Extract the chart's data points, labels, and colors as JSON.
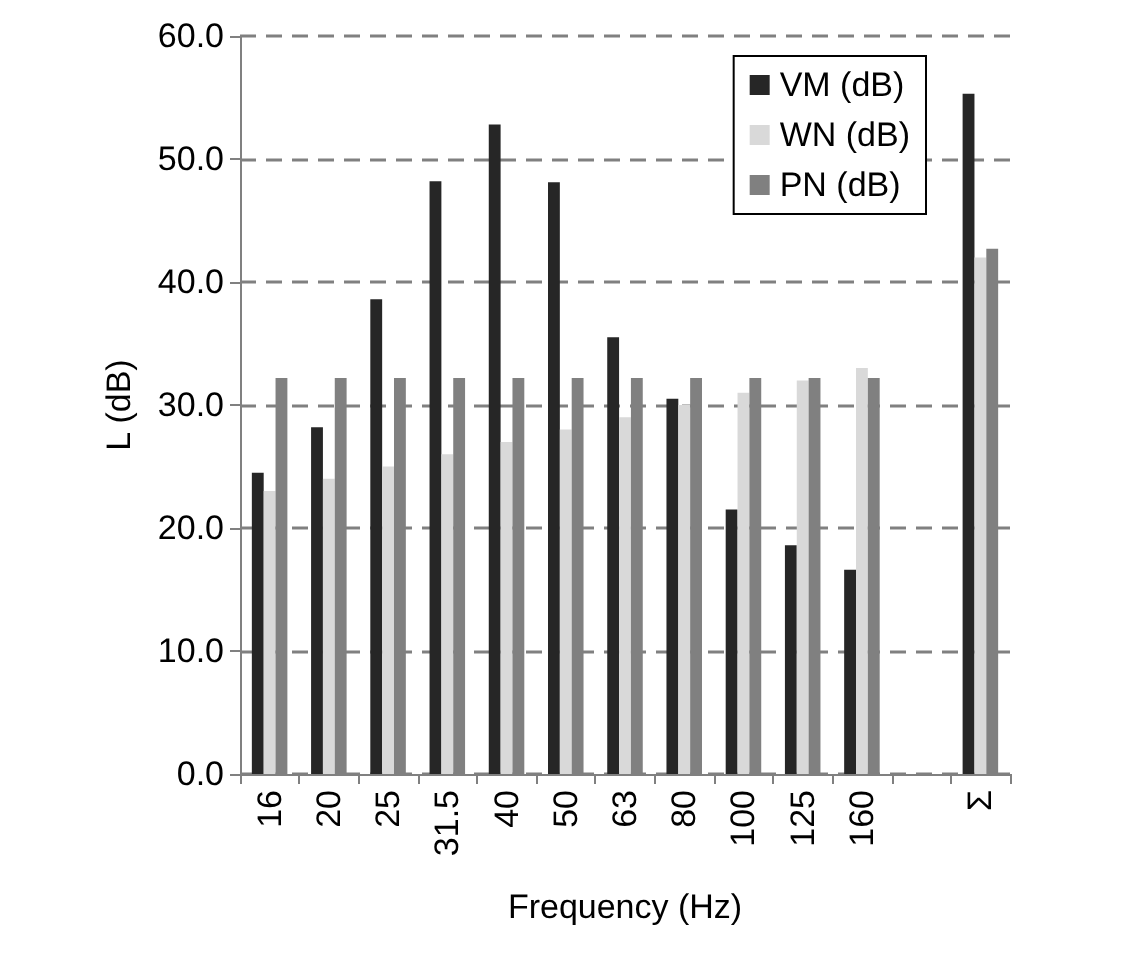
{
  "chart_data": {
    "type": "bar",
    "xlabel": "Frequency (Hz)",
    "ylabel": "L (dB)",
    "categories": [
      "16",
      "20",
      "25",
      "31.5",
      "40",
      "50",
      "63",
      "80",
      "100",
      "125",
      "160",
      null,
      "Σ"
    ],
    "series": [
      {
        "name": "VM (dB)",
        "color": "#262626",
        "values": [
          24.5,
          28.2,
          38.6,
          48.2,
          52.8,
          48.1,
          35.5,
          30.5,
          21.5,
          18.6,
          16.6,
          null,
          55.3
        ]
      },
      {
        "name": "WN (dB)",
        "color": "#d9d9d9",
        "values": [
          23.0,
          24.0,
          25.0,
          26.0,
          27.0,
          28.0,
          29.0,
          30.0,
          31.0,
          32.0,
          33.0,
          null,
          42.0
        ]
      },
      {
        "name": "PN (dB)",
        "color": "#808080",
        "values": [
          32.2,
          32.2,
          32.2,
          32.2,
          32.2,
          32.2,
          32.2,
          32.2,
          32.2,
          32.2,
          32.2,
          null,
          42.7
        ]
      }
    ],
    "ylim": [
      0,
      60
    ],
    "yticks": [
      {
        "value": 0,
        "label": "0.0"
      },
      {
        "value": 10,
        "label": "10.0"
      },
      {
        "value": 20,
        "label": "20.0"
      },
      {
        "value": 30,
        "label": "30.0"
      },
      {
        "value": 40,
        "label": "40.0"
      },
      {
        "value": 50,
        "label": "50.0"
      },
      {
        "value": 60,
        "label": "60.0"
      }
    ],
    "grid": "y",
    "legend": "top right"
  }
}
